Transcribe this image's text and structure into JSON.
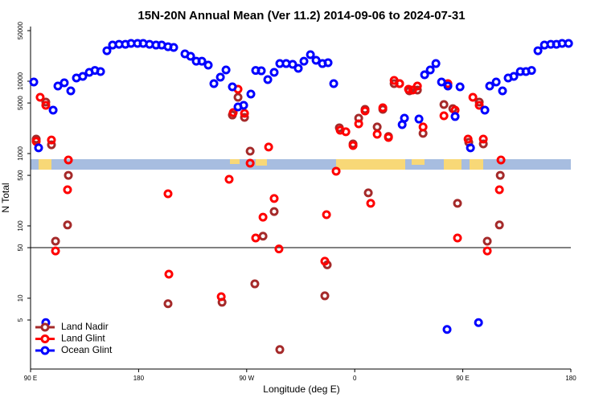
{
  "chart_data": {
    "type": "scatter",
    "title": "15N-20N Annual Mean (Ver 11.2)   2014-09-06 to 2024-07-31",
    "x_label": "Longitude (deg E)",
    "y_label": "N Total",
    "xlim": [
      90,
      540
    ],
    "xticks": [
      {
        "value": 90,
        "label": "90 E"
      },
      180,
      {
        "value": 270,
        "label": "90 W"
      },
      {
        "value": 360,
        "label": "0"
      },
      {
        "value": 450,
        "label": "90 E"
      },
      {
        "value": 540,
        "label": "180"
      }
    ],
    "ylim": [
      1.05,
      57000
    ],
    "log_y": true,
    "yticks": [
      5,
      10,
      50,
      100,
      500,
      1000,
      5000,
      10000,
      50000
    ],
    "hline": 50,
    "legend": "bottom-left",
    "series": [
      {
        "name": "Land Nadir",
        "color": "#a52a2a",
        "x": [
          94.7,
          102.7,
          107.4,
          110.8,
          120.8,
          121.5,
          204.5,
          249.5,
          258.1,
          262.8,
          268.2,
          272.9,
          276.8,
          283.6,
          292.9,
          297.6,
          335.1,
          337.1,
          347.2,
          358.6,
          363.3,
          368.6,
          371.3,
          378.7,
          383.4,
          388.1,
          392.8,
          397.4,
          405.5,
          412.2,
          416.9,
          434.3,
          441.7,
          445.6,
          455.0,
          463.7,
          467.1,
          470.4,
          480.5,
          481.2
        ],
        "values": [
          1585,
          5140,
          1320,
          61.5,
          103,
          500,
          8.4,
          8.8,
          3410,
          6000,
          3160,
          1080,
          15.8,
          72,
          158,
          1.95,
          10.8,
          29,
          2270,
          1360,
          3080,
          4080,
          286,
          2330,
          4080,
          1720,
          9260,
          9260,
          7360,
          7550,
          1900,
          4760,
          4170,
          205,
          1430,
          5140,
          1360,
          61.5,
          103,
          500
        ]
      },
      {
        "name": "Land Glint",
        "color": "#ff0000",
        "x": [
          94.7,
          98.0,
          102.7,
          107.4,
          110.8,
          120.8,
          121.5,
          204.5,
          205.2,
          248.8,
          255.4,
          258.8,
          262.8,
          268.2,
          272.9,
          277.5,
          283.6,
          288.3,
          292.9,
          296.9,
          335.1,
          336.5,
          344.5,
          347.9,
          352.6,
          358.6,
          363.3,
          368.6,
          373.3,
          378.7,
          383.4,
          388.1,
          392.8,
          397.4,
          404.8,
          408.2,
          412.2,
          416.9,
          434.3,
          437.6,
          443.6,
          445.6,
          454.4,
          458.4,
          463.7,
          467.1,
          470.4,
          480.5,
          481.8
        ],
        "values": [
          1470,
          6000,
          4640,
          1540,
          45,
          316,
          815,
          278,
          21.5,
          10.5,
          441,
          3690,
          7740,
          3590,
          736,
          68,
          132,
          1230,
          239,
          48,
          32.5,
          143,
          570,
          2100,
          2000,
          1290,
          2580,
          3880,
          205,
          1850,
          4300,
          1670,
          10260,
          9260,
          7740,
          7550,
          8580,
          2330,
          3330,
          9260,
          3980,
          68,
          1585,
          6000,
          4640,
          1585,
          45,
          316,
          815
        ]
      },
      {
        "name": "Ocean Glint",
        "color": "#0000ff",
        "x": [
          92.7,
          96.7,
          108.8,
          112.8,
          118.1,
          123.5,
          128.2,
          133.5,
          138.9,
          143.6,
          148.3,
          153.6,
          158.3,
          163.7,
          169.0,
          173.7,
          179.1,
          183.8,
          189.1,
          194.5,
          199.2,
          204.5,
          209.2,
          218.6,
          223.3,
          228.0,
          232.7,
          238.0,
          242.7,
          248.1,
          252.8,
          258.1,
          262.8,
          267.5,
          273.5,
          277.5,
          282.2,
          287.6,
          292.9,
          297.6,
          302.9,
          308.3,
          313.0,
          317.7,
          323.1,
          327.8,
          333.1,
          337.8,
          342.5,
          399.5,
          401.4,
          413.5,
          418.2,
          422.9,
          427.6,
          432.3,
          437.6,
          443.6,
          447.7,
          456.4,
          468.4,
          472.4,
          477.8,
          483.1,
          487.8,
          492.5,
          497.9,
          502.6,
          507.3,
          512.6,
          518.0,
          523.3,
          528.0,
          532.7,
          538.1,
          102.7,
          436.9,
          463.1
        ],
        "values": [
          9750,
          1200,
          3980,
          8580,
          9500,
          7360,
          11070,
          11660,
          13250,
          14100,
          13600,
          26400,
          31600,
          32400,
          32400,
          33300,
          33300,
          33300,
          32400,
          31600,
          31600,
          30000,
          29300,
          23900,
          22100,
          18900,
          18900,
          16700,
          9260,
          11370,
          14300,
          8360,
          4410,
          4640,
          6640,
          14100,
          13930,
          10520,
          13250,
          17540,
          17540,
          17100,
          15060,
          18900,
          23270,
          19450,
          17540,
          18010,
          9260,
          2510,
          3080,
          3000,
          12270,
          14300,
          17540,
          9750,
          8580,
          3250,
          8360,
          1200,
          3980,
          8580,
          9750,
          7360,
          11070,
          11660,
          13600,
          13600,
          14100,
          26400,
          31600,
          32400,
          32400,
          33300,
          33300,
          4.6,
          3.7,
          4.6
        ]
      }
    ]
  }
}
